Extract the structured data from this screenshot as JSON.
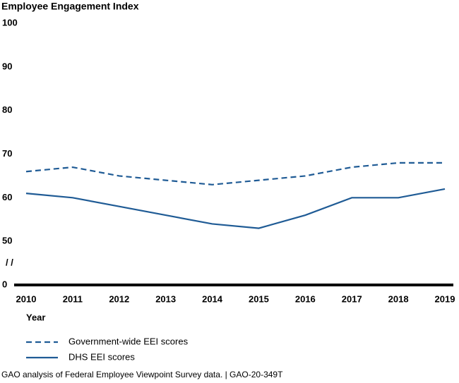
{
  "chart_data": {
    "type": "line",
    "title": "Employee Engagement Index",
    "categories": [
      "2010",
      "2011",
      "2012",
      "2013",
      "2014",
      "2015",
      "2016",
      "2017",
      "2018",
      "2019"
    ],
    "xlabel": "Year",
    "series": [
      {
        "name": "Government-wide EEI scores",
        "color": "#1f5b95",
        "line_style": "dashed",
        "values": [
          66,
          67,
          65,
          64,
          63,
          64,
          65,
          67,
          68,
          68
        ]
      },
      {
        "name": "DHS EEI scores",
        "color": "#1f5b95",
        "line_style": "solid",
        "values": [
          61,
          60,
          58,
          56,
          54,
          53,
          56,
          60,
          60,
          62
        ]
      }
    ],
    "ylim": [
      0,
      100
    ],
    "yticks": [
      0,
      50,
      60,
      70,
      80,
      90,
      100
    ],
    "y_break": [
      0,
      50
    ],
    "y_break_label": "/ /",
    "grid": false,
    "source": "GAO analysis of Federal Employee Viewpoint Survey data.  |  GAO-20-349T"
  }
}
